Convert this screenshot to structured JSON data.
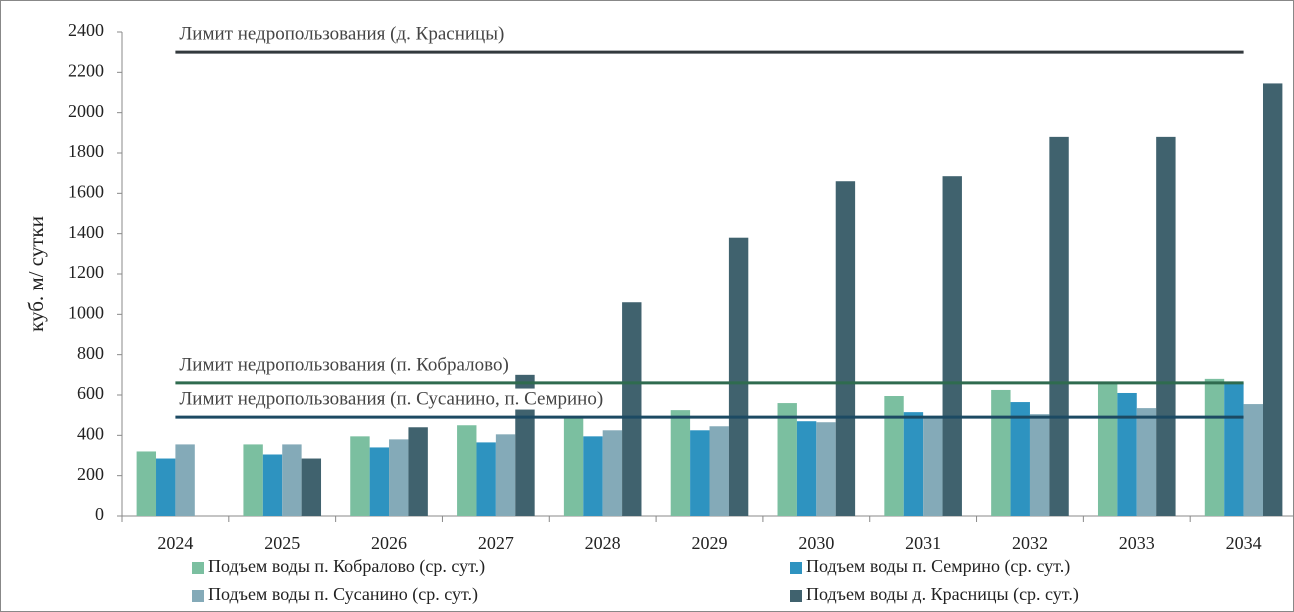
{
  "chart_data": {
    "type": "bar",
    "y_label": "куб. м/ сутки",
    "categories": [
      "2024",
      "2025",
      "2026",
      "2027",
      "2028",
      "2029",
      "2030",
      "2031",
      "2032",
      "2033",
      "2034"
    ],
    "series": [
      {
        "name": "Подъем воды п. Кобралово (ср. сут.)",
        "color": "#7bbfa0",
        "values": [
          320,
          355,
          395,
          450,
          490,
          525,
          560,
          595,
          625,
          655,
          680
        ]
      },
      {
        "name": "Подъем воды п. Семрино (ср. сут.)",
        "color": "#2e93c0",
        "values": [
          285,
          305,
          340,
          365,
          395,
          425,
          470,
          515,
          565,
          610,
          660
        ]
      },
      {
        "name": "Подъем воды п. Сусанино (ср. сут.)",
        "color": "#84aab8",
        "values": [
          355,
          355,
          380,
          405,
          425,
          445,
          465,
          490,
          505,
          535,
          555
        ]
      },
      {
        "name": "Подъем воды д. Красницы (ср. сут.)",
        "color": "#40626e",
        "values": [
          null,
          285,
          440,
          700,
          1060,
          1380,
          1660,
          1685,
          1880,
          1880,
          2145
        ]
      }
    ],
    "reference_lines": [
      {
        "label": "Лимит недропользования (д. Красницы)",
        "value": 2300,
        "color": "#33393d"
      },
      {
        "label": "Лимит недропользования (п. Кобралово)",
        "value": 660,
        "color": "#2f6b4f"
      },
      {
        "label": "Лимит недропользования (п. Сусанино, п. Семрино)",
        "value": 490,
        "color": "#1c4a63"
      }
    ],
    "ylim": [
      0,
      2400
    ],
    "yticks": [
      0,
      200,
      400,
      600,
      800,
      1000,
      1200,
      1400,
      1600,
      1800,
      2000,
      2200,
      2400
    ],
    "grid": false
  }
}
